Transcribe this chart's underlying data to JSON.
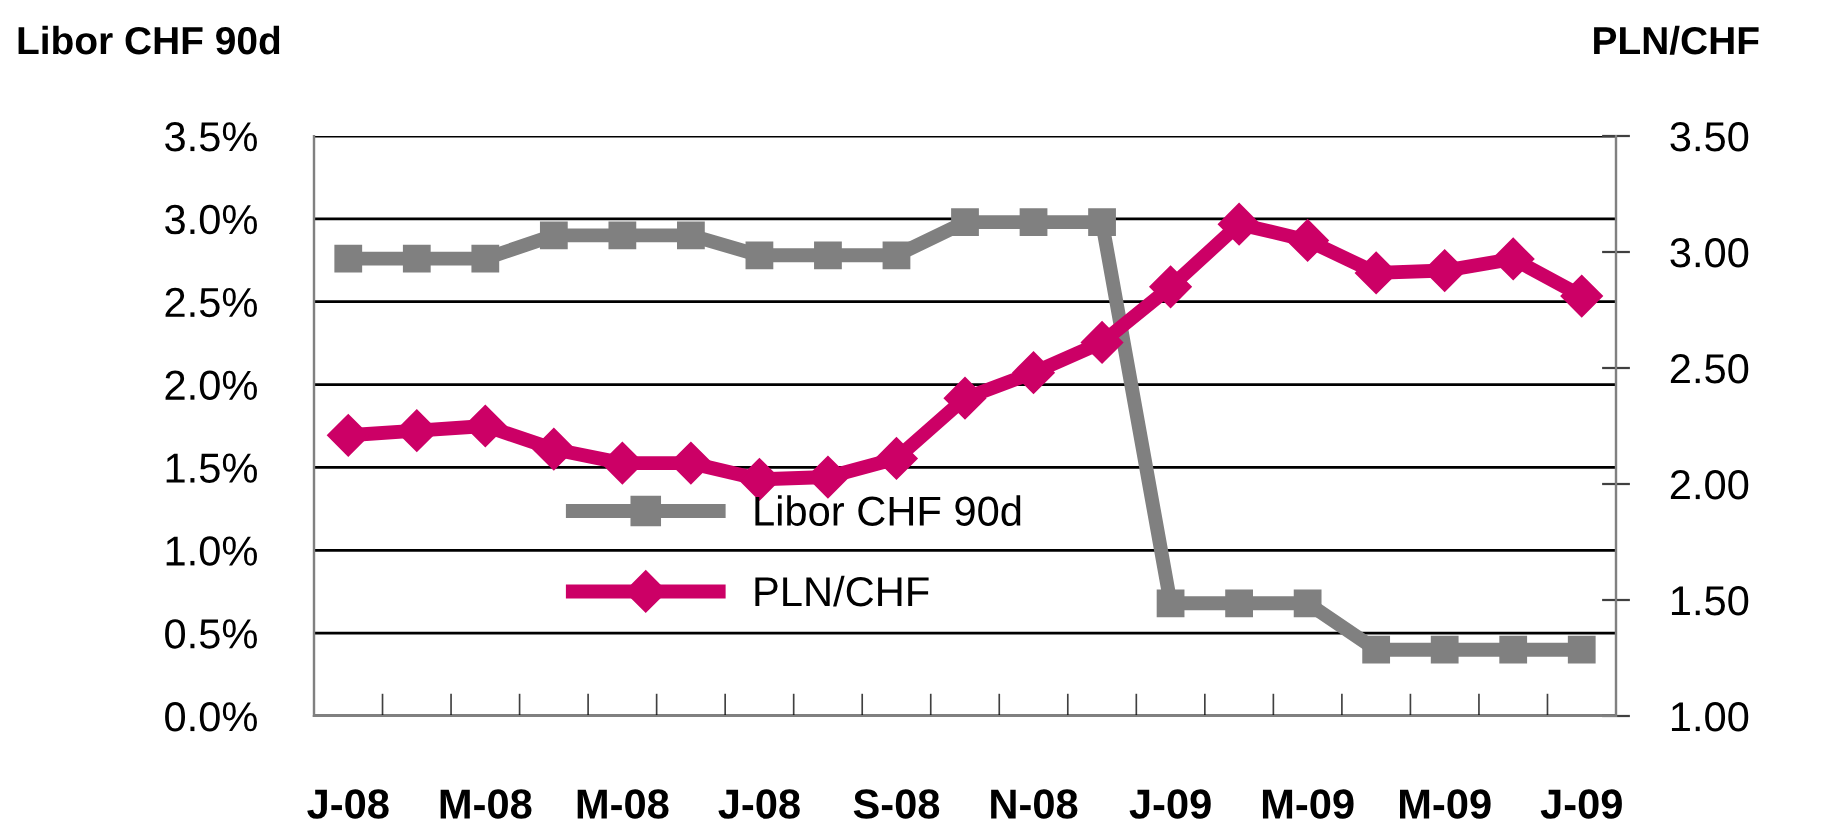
{
  "chart_data": {
    "type": "line",
    "ylabel": "Libor CHF 90d",
    "y2label": "PLN/CHF",
    "categories": [
      "J-08",
      null,
      "M-08",
      null,
      "M-08",
      null,
      "J-08",
      null,
      "S-08",
      null,
      "N-08",
      null,
      "J-09",
      null,
      "M-09",
      null,
      "M-09",
      null,
      "J-09"
    ],
    "series": [
      {
        "name": "Libor CHF 90d",
        "color": "#808080",
        "marker": "square",
        "values": [
          2.76,
          2.76,
          2.76,
          2.9,
          2.9,
          2.9,
          2.78,
          2.78,
          2.78,
          2.98,
          2.98,
          2.98,
          0.68,
          0.68,
          0.68,
          0.4,
          0.4,
          0.4,
          0.4
        ]
      },
      {
        "name": "PLN/CHF",
        "color": "#cc0066",
        "marker": "diamond",
        "axis": "y2",
        "values": [
          2.21,
          2.23,
          2.25,
          2.15,
          2.09,
          2.09,
          2.02,
          2.03,
          2.11,
          2.37,
          2.48,
          2.61,
          2.85,
          3.12,
          3.05,
          2.91,
          2.92,
          2.97,
          2.81
        ]
      }
    ],
    "ylim": [
      0,
      3.5
    ],
    "yticks": [
      {
        "value": 0,
        "label": "0.0%"
      },
      {
        "value": 0.5,
        "label": "0.5%"
      },
      {
        "value": 1,
        "label": "1.0%"
      },
      {
        "value": 1.5,
        "label": "1.5%"
      },
      {
        "value": 2,
        "label": "2.0%"
      },
      {
        "value": 2.5,
        "label": "2.5%"
      },
      {
        "value": 3,
        "label": "3.0%"
      },
      {
        "value": 3.5,
        "label": "3.5%"
      }
    ],
    "y2lim": [
      1,
      3.5
    ],
    "y2ticks": [
      {
        "value": 1,
        "label": "1.00"
      },
      {
        "value": 1.5,
        "label": "1.50"
      },
      {
        "value": 2,
        "label": "2.00"
      },
      {
        "value": 2.5,
        "label": "2.50"
      },
      {
        "value": 3,
        "label": "3.00"
      },
      {
        "value": 3.5,
        "label": "3.50"
      }
    ],
    "grid": "y",
    "legend": "bottom left",
    "line_style": "solid"
  }
}
